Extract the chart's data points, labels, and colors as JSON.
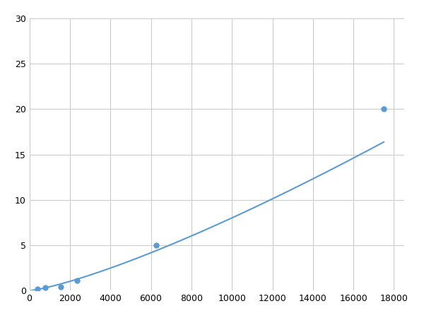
{
  "x_data": [
    390,
    780,
    1560,
    2340,
    6250,
    17500
  ],
  "y_data": [
    0.2,
    0.3,
    0.4,
    1.1,
    5.0,
    20.0
  ],
  "line_color": "#5b9bd5",
  "marker_color": "#5b9bd5",
  "marker_size": 5,
  "xlim": [
    0,
    18500
  ],
  "ylim": [
    0,
    30
  ],
  "xticks": [
    0,
    2000,
    4000,
    6000,
    8000,
    10000,
    12000,
    14000,
    16000,
    18000
  ],
  "yticks": [
    0,
    5,
    10,
    15,
    20,
    25,
    30
  ],
  "grid_color": "#c8c8c8",
  "background_color": "#ffffff",
  "linewidth": 1.5
}
